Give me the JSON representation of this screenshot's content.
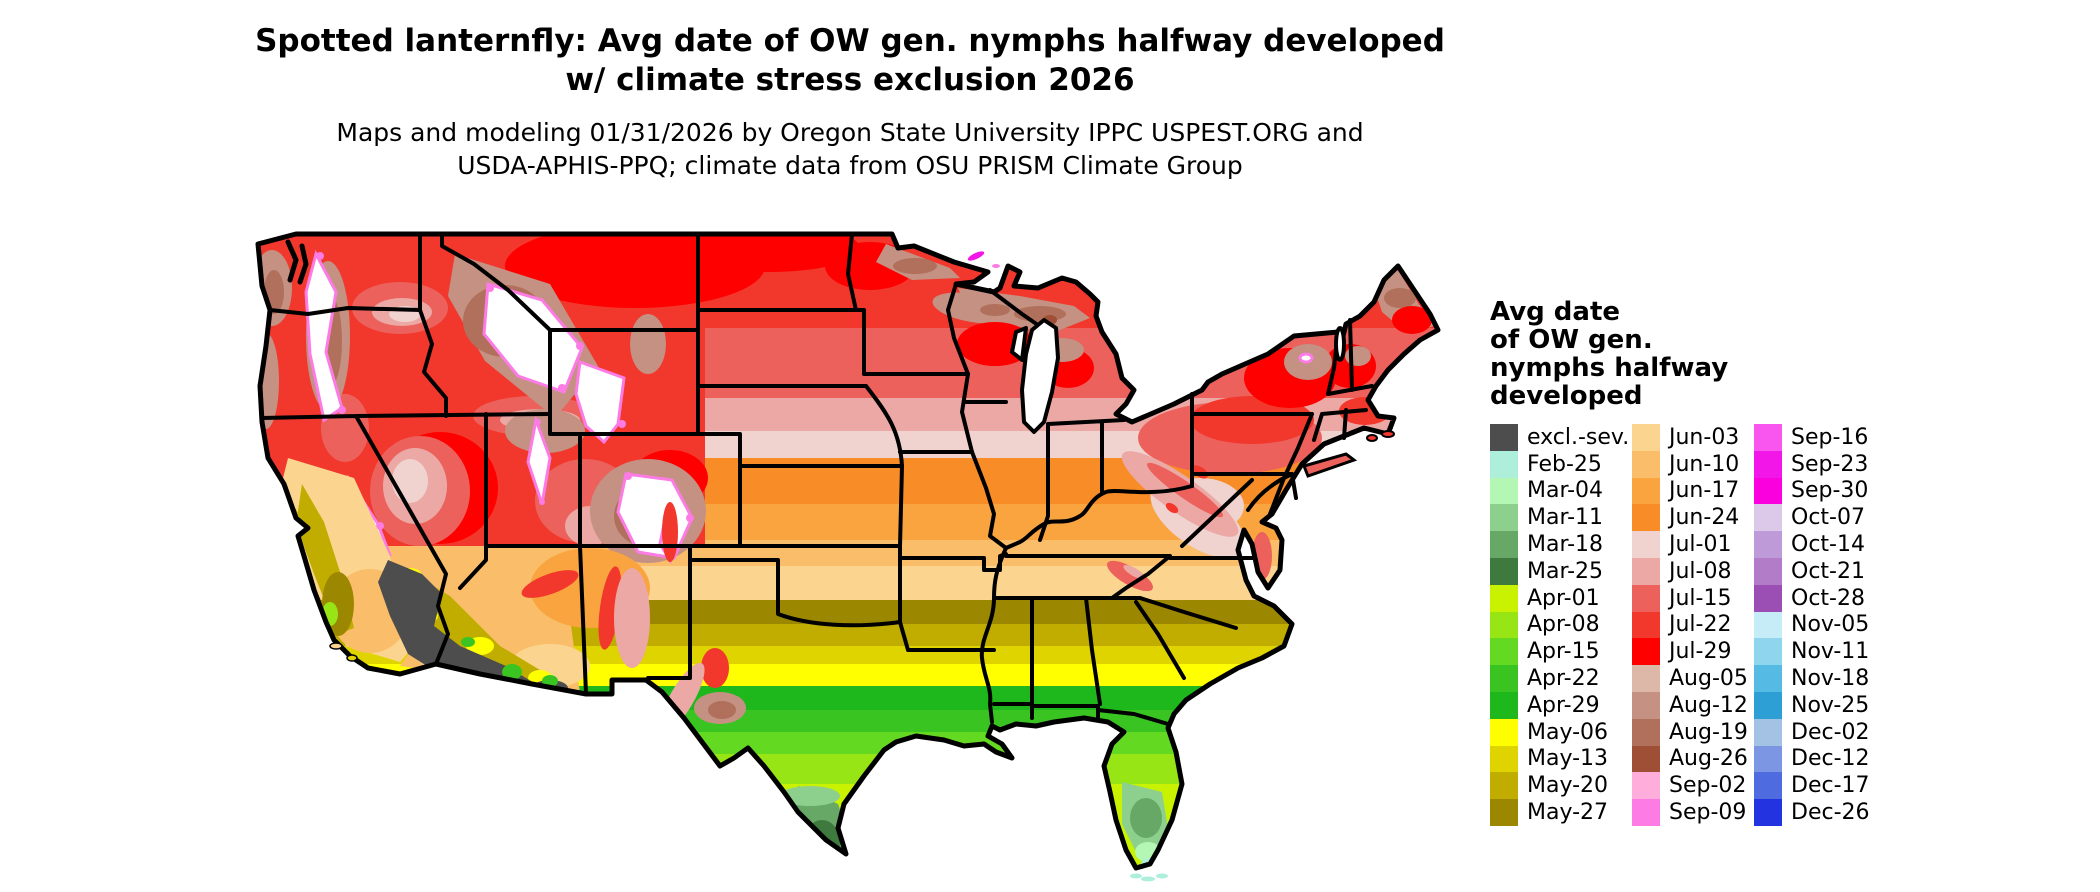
{
  "header": {
    "title_line1": "Spotted lanternfly: Avg date of OW gen. nymphs halfway developed",
    "title_line2": "w/ climate stress exclusion 2026",
    "subtitle_line1": "Maps and modeling 01/31/2026 by Oregon State University IPPC USPEST.ORG and",
    "subtitle_line2": "USDA-APHIS-PPQ; climate data from OSU PRISM Climate Group"
  },
  "legend": {
    "title_lines": [
      "Avg date",
      "of OW gen.",
      "nymphs halfway",
      "developed"
    ],
    "columns": [
      [
        {
          "key": "excl_sev",
          "label": "excl.-sev.",
          "color": "#4D4D4D"
        },
        {
          "key": "feb25",
          "label": "Feb-25",
          "color": "#AEEFDB"
        },
        {
          "key": "mar04",
          "label": "Mar-04",
          "color": "#B4F6B4"
        },
        {
          "key": "mar11",
          "label": "Mar-11",
          "color": "#8DCF8D"
        },
        {
          "key": "mar18",
          "label": "Mar-18",
          "color": "#67A867"
        },
        {
          "key": "mar25",
          "label": "Mar-25",
          "color": "#3E7A3E"
        },
        {
          "key": "apr01",
          "label": "Apr-01",
          "color": "#C9F200"
        },
        {
          "key": "apr08",
          "label": "Apr-08",
          "color": "#97E515"
        },
        {
          "key": "apr15",
          "label": "Apr-15",
          "color": "#63D921"
        },
        {
          "key": "apr22",
          "label": "Apr-22",
          "color": "#3AC421"
        },
        {
          "key": "apr29",
          "label": "Apr-29",
          "color": "#1FB81C"
        },
        {
          "key": "may06",
          "label": "May-06",
          "color": "#FFFF00"
        },
        {
          "key": "may13",
          "label": "May-13",
          "color": "#DFD300"
        },
        {
          "key": "may20",
          "label": "May-20",
          "color": "#C1AD00"
        },
        {
          "key": "may27",
          "label": "May-27",
          "color": "#9C8800"
        }
      ],
      [
        {
          "key": "jun03",
          "label": "Jun-03",
          "color": "#FBD58F"
        },
        {
          "key": "jun10",
          "label": "Jun-10",
          "color": "#FABD69"
        },
        {
          "key": "jun17",
          "label": "Jun-17",
          "color": "#F9A43F"
        },
        {
          "key": "jun24",
          "label": "Jun-24",
          "color": "#F88C27"
        },
        {
          "key": "jul01",
          "label": "Jul-01",
          "color": "#F0D2CE"
        },
        {
          "key": "jul08",
          "label": "Jul-08",
          "color": "#EBA8A4"
        },
        {
          "key": "jul15",
          "label": "Jul-15",
          "color": "#EC615C"
        },
        {
          "key": "jul22",
          "label": "Jul-22",
          "color": "#F2372C"
        },
        {
          "key": "jul29",
          "label": "Jul-29",
          "color": "#FE0000"
        },
        {
          "key": "aug05",
          "label": "Aug-05",
          "color": "#DDB7A8"
        },
        {
          "key": "aug12",
          "label": "Aug-12",
          "color": "#C49183"
        },
        {
          "key": "aug19",
          "label": "Aug-19",
          "color": "#B0705B"
        },
        {
          "key": "aug26",
          "label": "Aug-26",
          "color": "#9E4F35"
        },
        {
          "key": "sep02",
          "label": "Sep-02",
          "color": "#FFAEDC"
        },
        {
          "key": "sep09",
          "label": "Sep-09",
          "color": "#FC7BE4"
        }
      ],
      [
        {
          "key": "sep16",
          "label": "Sep-16",
          "color": "#F956F0"
        },
        {
          "key": "sep23",
          "label": "Sep-23",
          "color": "#F316E8"
        },
        {
          "key": "sep30",
          "label": "Sep-30",
          "color": "#FB00DE"
        },
        {
          "key": "oct07",
          "label": "Oct-07",
          "color": "#DCC8E8"
        },
        {
          "key": "oct14",
          "label": "Oct-14",
          "color": "#BF9AD8"
        },
        {
          "key": "oct21",
          "label": "Oct-21",
          "color": "#B27CC9"
        },
        {
          "key": "oct28",
          "label": "Oct-28",
          "color": "#9B4FB5"
        },
        {
          "key": "nov05",
          "label": "Nov-05",
          "color": "#C5ECF7"
        },
        {
          "key": "nov11",
          "label": "Nov-11",
          "color": "#8FD5EE"
        },
        {
          "key": "nov18",
          "label": "Nov-18",
          "color": "#55BAE4"
        },
        {
          "key": "nov25",
          "label": "Nov-25",
          "color": "#2D9FD5"
        },
        {
          "key": "dec02",
          "label": "Dec-02",
          "color": "#A3C2E4"
        },
        {
          "key": "dec12",
          "label": "Dec-12",
          "color": "#7D96E3"
        },
        {
          "key": "dec17",
          "label": "Dec-17",
          "color": "#4E6BDF"
        },
        {
          "key": "dec26",
          "label": "Dec-26",
          "color": "#2333DF"
        }
      ]
    ]
  },
  "map": {
    "region": "Continental United States",
    "border_color": "#000000",
    "excluded_water_color": "#FFFFFF"
  }
}
